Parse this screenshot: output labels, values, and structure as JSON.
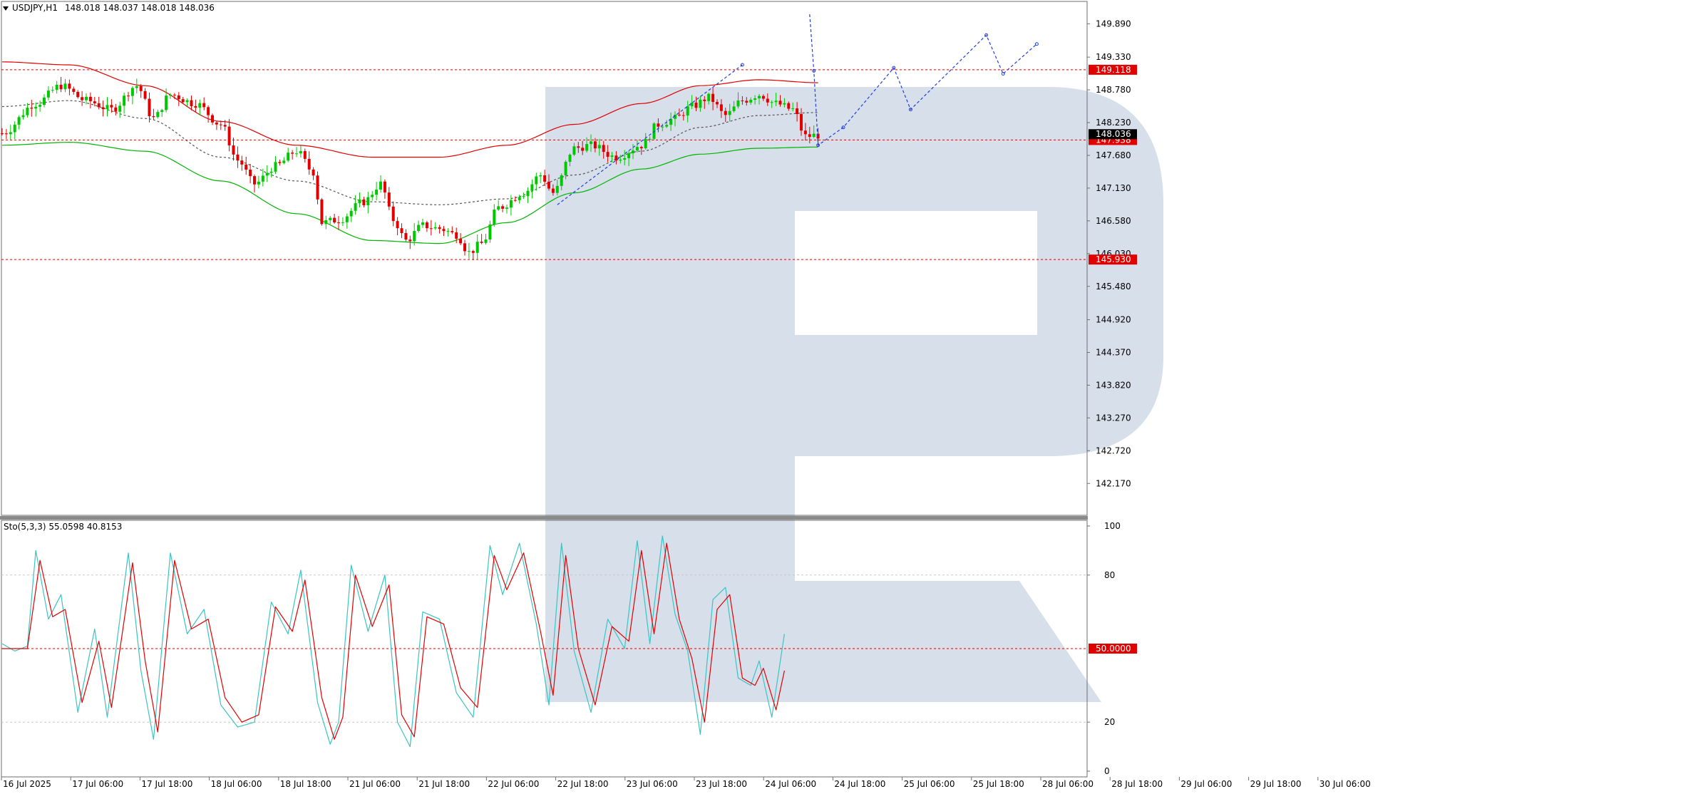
{
  "window": {
    "symbol_label": "USDJPY,H1",
    "ohlc_label": "148.018 148.037 148.018 148.036"
  },
  "watermark": {
    "colors": {
      "fill": "#d6dfea"
    }
  },
  "colors": {
    "background": "#ffffff",
    "frame": "#6e6e6e",
    "bull_candle": "#00c800",
    "bear_candle": "#e00000",
    "upper_band": "#e00000",
    "lower_band": "#00b400",
    "middle_band": "#555555",
    "forecast": "#1f3ee0",
    "level": "#e00000",
    "price_tag_bg": "#e00000",
    "current_tag_bg": "#000000",
    "stoch_main": "#3cc3c3",
    "stoch_signal": "#e00000",
    "grid": "#c8c8c8"
  },
  "chart_data": [
    {
      "type": "candlestick",
      "title": "USDJPY,H1",
      "ohlc_text": "148.018 148.037 148.018 148.036",
      "timeframe": "H1",
      "ylim": [
        141.85,
        150.05
      ],
      "y_ticks": [
        "149.890",
        "149.330",
        "148.780",
        "148.230",
        "147.680",
        "147.130",
        "146.580",
        "146.030",
        "145.480",
        "144.920",
        "144.370",
        "143.820",
        "143.270",
        "142.720",
        "142.170"
      ],
      "x_ticks": [
        "16 Jul 2025",
        "17 Jul 06:00",
        "17 Jul 18:00",
        "18 Jul 06:00",
        "18 Jul 18:00",
        "21 Jul 06:00",
        "21 Jul 18:00",
        "22 Jul 06:00",
        "22 Jul 18:00",
        "23 Jul 06:00",
        "23 Jul 18:00",
        "24 Jul 06:00",
        "24 Jul 18:00",
        "25 Jul 06:00",
        "25 Jul 18:00",
        "28 Jul 06:00",
        "28 Jul 18:00",
        "29 Jul 06:00",
        "29 Jul 18:00",
        "30 Jul 06:00"
      ],
      "horizontal_levels": [
        {
          "label": "149.118",
          "value": 149.118
        },
        {
          "label": "147.938",
          "value": 147.938
        },
        {
          "label": "145.930",
          "value": 145.93
        }
      ],
      "current_price": {
        "label": "148.036",
        "value": 148.036
      },
      "price_path_anchors": [
        {
          "bar": 0,
          "price": 148.05
        },
        {
          "bar": 8,
          "price": 148.55
        },
        {
          "bar": 14,
          "price": 148.85
        },
        {
          "bar": 20,
          "price": 148.6
        },
        {
          "bar": 26,
          "price": 148.45
        },
        {
          "bar": 32,
          "price": 148.85
        },
        {
          "bar": 36,
          "price": 148.3
        },
        {
          "bar": 40,
          "price": 148.7
        },
        {
          "bar": 46,
          "price": 148.55
        },
        {
          "bar": 52,
          "price": 148.2
        },
        {
          "bar": 56,
          "price": 147.6
        },
        {
          "bar": 60,
          "price": 147.2
        },
        {
          "bar": 65,
          "price": 147.5
        },
        {
          "bar": 70,
          "price": 147.75
        },
        {
          "bar": 74,
          "price": 147.4
        },
        {
          "bar": 76,
          "price": 146.55
        },
        {
          "bar": 80,
          "price": 146.6
        },
        {
          "bar": 86,
          "price": 146.9
        },
        {
          "bar": 90,
          "price": 147.2
        },
        {
          "bar": 93,
          "price": 146.6
        },
        {
          "bar": 96,
          "price": 146.25
        },
        {
          "bar": 100,
          "price": 146.5
        },
        {
          "bar": 104,
          "price": 146.45
        },
        {
          "bar": 108,
          "price": 146.35
        },
        {
          "bar": 111,
          "price": 146.05
        },
        {
          "bar": 114,
          "price": 146.2
        },
        {
          "bar": 118,
          "price": 146.8
        },
        {
          "bar": 124,
          "price": 147.05
        },
        {
          "bar": 128,
          "price": 147.35
        },
        {
          "bar": 131,
          "price": 147.05
        },
        {
          "bar": 136,
          "price": 147.8
        },
        {
          "bar": 140,
          "price": 147.85
        },
        {
          "bar": 146,
          "price": 147.65
        },
        {
          "bar": 152,
          "price": 147.85
        },
        {
          "bar": 156,
          "price": 148.2
        },
        {
          "bar": 160,
          "price": 148.3
        },
        {
          "bar": 164,
          "price": 148.5
        },
        {
          "bar": 168,
          "price": 148.65
        },
        {
          "bar": 172,
          "price": 148.35
        },
        {
          "bar": 176,
          "price": 148.6
        },
        {
          "bar": 180,
          "price": 148.7
        },
        {
          "bar": 184,
          "price": 148.55
        },
        {
          "bar": 188,
          "price": 148.45
        },
        {
          "bar": 191,
          "price": 148.0
        },
        {
          "bar": 194,
          "price": 148.02
        }
      ],
      "bands": {
        "upper": [
          {
            "bar": 0,
            "price": 149.25
          },
          {
            "bar": 16,
            "price": 149.2
          },
          {
            "bar": 34,
            "price": 148.85
          },
          {
            "bar": 52,
            "price": 148.25
          },
          {
            "bar": 70,
            "price": 147.85
          },
          {
            "bar": 88,
            "price": 147.65
          },
          {
            "bar": 104,
            "price": 147.65
          },
          {
            "bar": 120,
            "price": 147.85
          },
          {
            "bar": 136,
            "price": 148.2
          },
          {
            "bar": 152,
            "price": 148.55
          },
          {
            "bar": 166,
            "price": 148.85
          },
          {
            "bar": 180,
            "price": 148.95
          },
          {
            "bar": 194,
            "price": 148.9
          }
        ],
        "middle": [
          {
            "bar": 0,
            "price": 148.5
          },
          {
            "bar": 16,
            "price": 148.6
          },
          {
            "bar": 34,
            "price": 148.3
          },
          {
            "bar": 52,
            "price": 147.65
          },
          {
            "bar": 70,
            "price": 147.25
          },
          {
            "bar": 88,
            "price": 146.9
          },
          {
            "bar": 104,
            "price": 146.85
          },
          {
            "bar": 120,
            "price": 146.95
          },
          {
            "bar": 136,
            "price": 147.35
          },
          {
            "bar": 152,
            "price": 147.75
          },
          {
            "bar": 166,
            "price": 148.15
          },
          {
            "bar": 180,
            "price": 148.35
          },
          {
            "bar": 194,
            "price": 148.4
          }
        ],
        "lower": [
          {
            "bar": 0,
            "price": 147.85
          },
          {
            "bar": 16,
            "price": 147.9
          },
          {
            "bar": 34,
            "price": 147.75
          },
          {
            "bar": 52,
            "price": 147.25
          },
          {
            "bar": 70,
            "price": 146.7
          },
          {
            "bar": 88,
            "price": 146.25
          },
          {
            "bar": 104,
            "price": 146.2
          },
          {
            "bar": 120,
            "price": 146.55
          },
          {
            "bar": 136,
            "price": 147.05
          },
          {
            "bar": 152,
            "price": 147.45
          },
          {
            "bar": 166,
            "price": 147.7
          },
          {
            "bar": 180,
            "price": 147.8
          },
          {
            "bar": 194,
            "price": 147.82
          }
        ]
      },
      "forecast_lines": [
        {
          "points": [
            {
              "bar": 132,
              "price": 146.85
            },
            {
              "bar": 176,
              "price": 149.2
            }
          ]
        },
        {
          "points": [
            {
              "bar": 192,
              "price": 150.05
            },
            {
              "bar": 193,
              "price": 149.1
            },
            {
              "bar": 194,
              "price": 147.85
            },
            {
              "bar": 200,
              "price": 148.15
            },
            {
              "bar": 212,
              "price": 149.15
            },
            {
              "bar": 216,
              "price": 148.45
            },
            {
              "bar": 234,
              "price": 149.7
            },
            {
              "bar": 238,
              "price": 149.05
            },
            {
              "bar": 246,
              "price": 149.55
            }
          ]
        }
      ]
    },
    {
      "type": "line",
      "title": "Sto(5,3,3) 55.0598 40.8153",
      "ylim": [
        0,
        100
      ],
      "y_ticks": [
        "100",
        "80",
        "20",
        "0"
      ],
      "levels": [
        {
          "label": "",
          "value": 80
        },
        {
          "label": "50.0000",
          "value": 50
        },
        {
          "label": "",
          "value": 20
        }
      ],
      "series": [
        {
          "name": "",
          "points": [
            {
              "bar": 0,
              "value": 52
            },
            {
              "bar": 3,
              "value": 49
            },
            {
              "bar": 6,
              "value": 51
            },
            {
              "bar": 8,
              "value": 90
            },
            {
              "bar": 11,
              "value": 62
            },
            {
              "bar": 14,
              "value": 72
            },
            {
              "bar": 18,
              "value": 24
            },
            {
              "bar": 22,
              "value": 58
            },
            {
              "bar": 25,
              "value": 22
            },
            {
              "bar": 30,
              "value": 89
            },
            {
              "bar": 33,
              "value": 41
            },
            {
              "bar": 36,
              "value": 13
            },
            {
              "bar": 40,
              "value": 89
            },
            {
              "bar": 44,
              "value": 56
            },
            {
              "bar": 48,
              "value": 66
            },
            {
              "bar": 52,
              "value": 27
            },
            {
              "bar": 56,
              "value": 18
            },
            {
              "bar": 60,
              "value": 20
            },
            {
              "bar": 64,
              "value": 69
            },
            {
              "bar": 68,
              "value": 56
            },
            {
              "bar": 71,
              "value": 82
            },
            {
              "bar": 75,
              "value": 28
            },
            {
              "bar": 78,
              "value": 11
            },
            {
              "bar": 80,
              "value": 20
            },
            {
              "bar": 83,
              "value": 84
            },
            {
              "bar": 87,
              "value": 57
            },
            {
              "bar": 91,
              "value": 80
            },
            {
              "bar": 94,
              "value": 20
            },
            {
              "bar": 97,
              "value": 10
            },
            {
              "bar": 100,
              "value": 65
            },
            {
              "bar": 104,
              "value": 62
            },
            {
              "bar": 108,
              "value": 32
            },
            {
              "bar": 112,
              "value": 22
            },
            {
              "bar": 116,
              "value": 92
            },
            {
              "bar": 119,
              "value": 72
            },
            {
              "bar": 123,
              "value": 93
            },
            {
              "bar": 127,
              "value": 60
            },
            {
              "bar": 130,
              "value": 27
            },
            {
              "bar": 133,
              "value": 93
            },
            {
              "bar": 136,
              "value": 49
            },
            {
              "bar": 140,
              "value": 24
            },
            {
              "bar": 144,
              "value": 62
            },
            {
              "bar": 148,
              "value": 50
            },
            {
              "bar": 151,
              "value": 94
            },
            {
              "bar": 154,
              "value": 52
            },
            {
              "bar": 157,
              "value": 96
            },
            {
              "bar": 160,
              "value": 64
            },
            {
              "bar": 163,
              "value": 49
            },
            {
              "bar": 166,
              "value": 15
            },
            {
              "bar": 169,
              "value": 70
            },
            {
              "bar": 172,
              "value": 75
            },
            {
              "bar": 175,
              "value": 38
            },
            {
              "bar": 178,
              "value": 35
            },
            {
              "bar": 180,
              "value": 45
            },
            {
              "bar": 183,
              "value": 22
            },
            {
              "bar": 186,
              "value": 56
            }
          ]
        },
        {
          "name": "",
          "points": [
            {
              "bar": 0,
              "value": 50
            },
            {
              "bar": 3,
              "value": 50
            },
            {
              "bar": 6,
              "value": 50
            },
            {
              "bar": 9,
              "value": 86
            },
            {
              "bar": 12,
              "value": 63
            },
            {
              "bar": 15,
              "value": 66
            },
            {
              "bar": 19,
              "value": 28
            },
            {
              "bar": 23,
              "value": 53
            },
            {
              "bar": 26,
              "value": 26
            },
            {
              "bar": 31,
              "value": 85
            },
            {
              "bar": 34,
              "value": 45
            },
            {
              "bar": 37,
              "value": 16
            },
            {
              "bar": 41,
              "value": 86
            },
            {
              "bar": 45,
              "value": 58
            },
            {
              "bar": 49,
              "value": 62
            },
            {
              "bar": 53,
              "value": 30
            },
            {
              "bar": 57,
              "value": 20
            },
            {
              "bar": 61,
              "value": 23
            },
            {
              "bar": 65,
              "value": 67
            },
            {
              "bar": 69,
              "value": 57
            },
            {
              "bar": 72,
              "value": 78
            },
            {
              "bar": 76,
              "value": 30
            },
            {
              "bar": 79,
              "value": 13
            },
            {
              "bar": 81,
              "value": 22
            },
            {
              "bar": 84,
              "value": 80
            },
            {
              "bar": 88,
              "value": 59
            },
            {
              "bar": 92,
              "value": 76
            },
            {
              "bar": 95,
              "value": 23
            },
            {
              "bar": 98,
              "value": 14
            },
            {
              "bar": 101,
              "value": 63
            },
            {
              "bar": 105,
              "value": 60
            },
            {
              "bar": 109,
              "value": 34
            },
            {
              "bar": 113,
              "value": 26
            },
            {
              "bar": 117,
              "value": 88
            },
            {
              "bar": 120,
              "value": 74
            },
            {
              "bar": 124,
              "value": 89
            },
            {
              "bar": 128,
              "value": 57
            },
            {
              "bar": 131,
              "value": 31
            },
            {
              "bar": 134,
              "value": 88
            },
            {
              "bar": 137,
              "value": 50
            },
            {
              "bar": 141,
              "value": 27
            },
            {
              "bar": 145,
              "value": 59
            },
            {
              "bar": 149,
              "value": 53
            },
            {
              "bar": 152,
              "value": 90
            },
            {
              "bar": 155,
              "value": 56
            },
            {
              "bar": 158,
              "value": 93
            },
            {
              "bar": 161,
              "value": 62
            },
            {
              "bar": 164,
              "value": 46
            },
            {
              "bar": 167,
              "value": 20
            },
            {
              "bar": 170,
              "value": 66
            },
            {
              "bar": 173,
              "value": 72
            },
            {
              "bar": 176,
              "value": 38
            },
            {
              "bar": 179,
              "value": 35
            },
            {
              "bar": 181,
              "value": 42
            },
            {
              "bar": 184,
              "value": 25
            },
            {
              "bar": 186,
              "value": 41
            }
          ]
        }
      ],
      "x_ticks": [
        "16 Jul 2025",
        "17 Jul 06:00",
        "17 Jul 18:00",
        "18 Jul 06:00",
        "18 Jul 18:00",
        "21 Jul 06:00",
        "21 Jul 18:00",
        "22 Jul 06:00",
        "22 Jul 18:00",
        "23 Jul 06:00",
        "23 Jul 18:00",
        "24 Jul 06:00",
        "24 Jul 18:00",
        "25 Jul 06:00",
        "25 Jul 18:00",
        "28 Jul 06:00",
        "28 Jul 18:00",
        "29 Jul 06:00",
        "29 Jul 18:00",
        "30 Jul 06:00"
      ]
    }
  ]
}
